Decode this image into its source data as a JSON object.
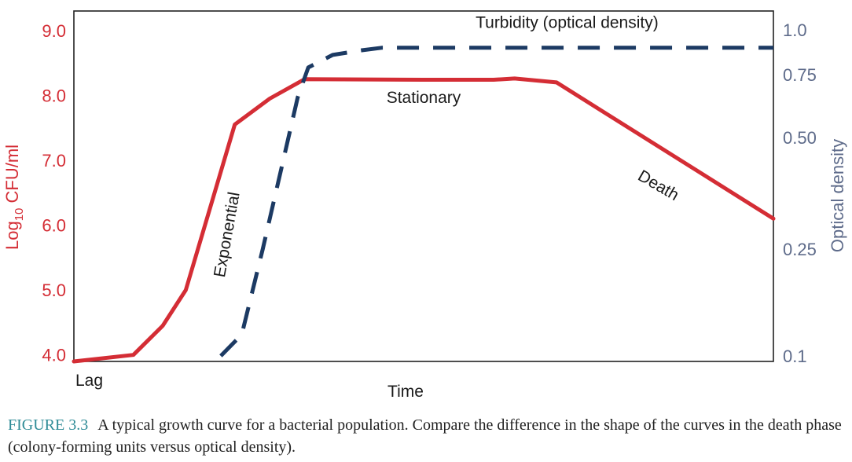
{
  "chart_data": {
    "type": "line",
    "xlabel": "Time",
    "x_start_label": "Lag",
    "y_left": {
      "label_prefix": "Log",
      "label_sub": "10",
      "label_suffix": " CFU/ml",
      "ticks": [
        "4.0",
        "5.0",
        "6.0",
        "7.0",
        "8.0",
        "9.0"
      ],
      "tick_values": [
        4,
        5,
        6,
        7,
        8,
        9
      ],
      "range": [
        3.9,
        9.3
      ],
      "color": "#d42d35"
    },
    "y_right": {
      "label": "Optical density",
      "ticks": [
        "0.1",
        "0.25",
        "0.50",
        "0.75",
        "1.0"
      ],
      "tick_values": [
        0.1,
        0.25,
        0.5,
        0.75,
        1.0
      ],
      "color": "#5e6b8a"
    },
    "x_range": [
      0,
      100
    ],
    "series": [
      {
        "style": "solid",
        "color": "#d42d35",
        "axis": "left",
        "x": [
          0,
          8.5,
          12.7,
          16,
          23,
          28,
          33,
          50,
          60,
          63,
          69,
          100
        ],
        "y": [
          3.9,
          4.0,
          4.45,
          5.0,
          7.55,
          7.95,
          8.25,
          8.24,
          8.24,
          8.26,
          8.2,
          6.1
        ]
      },
      {
        "style": "dashed",
        "color": "#1c3a63",
        "axis": "right",
        "x": [
          21,
          24,
          27,
          29.5,
          32,
          33.5,
          37,
          41,
          44,
          100
        ],
        "y": [
          0.1,
          0.13,
          0.25,
          0.42,
          0.66,
          0.79,
          0.86,
          0.885,
          0.9,
          0.9
        ]
      }
    ],
    "annotations": [
      {
        "text": "Turbidity (optical density)",
        "x": 70.5,
        "y_right": 1.035,
        "rotation": 0
      },
      {
        "text": "Stationary",
        "x": 50,
        "y_left": 7.95,
        "rotation": 0
      },
      {
        "text": "Exponential",
        "x": 22,
        "y_left": 5.85,
        "rotation": -80
      },
      {
        "text": "Death",
        "x": 83.5,
        "y_left": 6.6,
        "rotation": 30
      }
    ],
    "grid": false,
    "legend": "none"
  },
  "caption": {
    "figure_label": "FIGURE 3.3",
    "text": "A typical growth curve for a bacterial population. Compare the difference in the shape of the curves in the death phase (colony-forming units versus optical density)."
  }
}
